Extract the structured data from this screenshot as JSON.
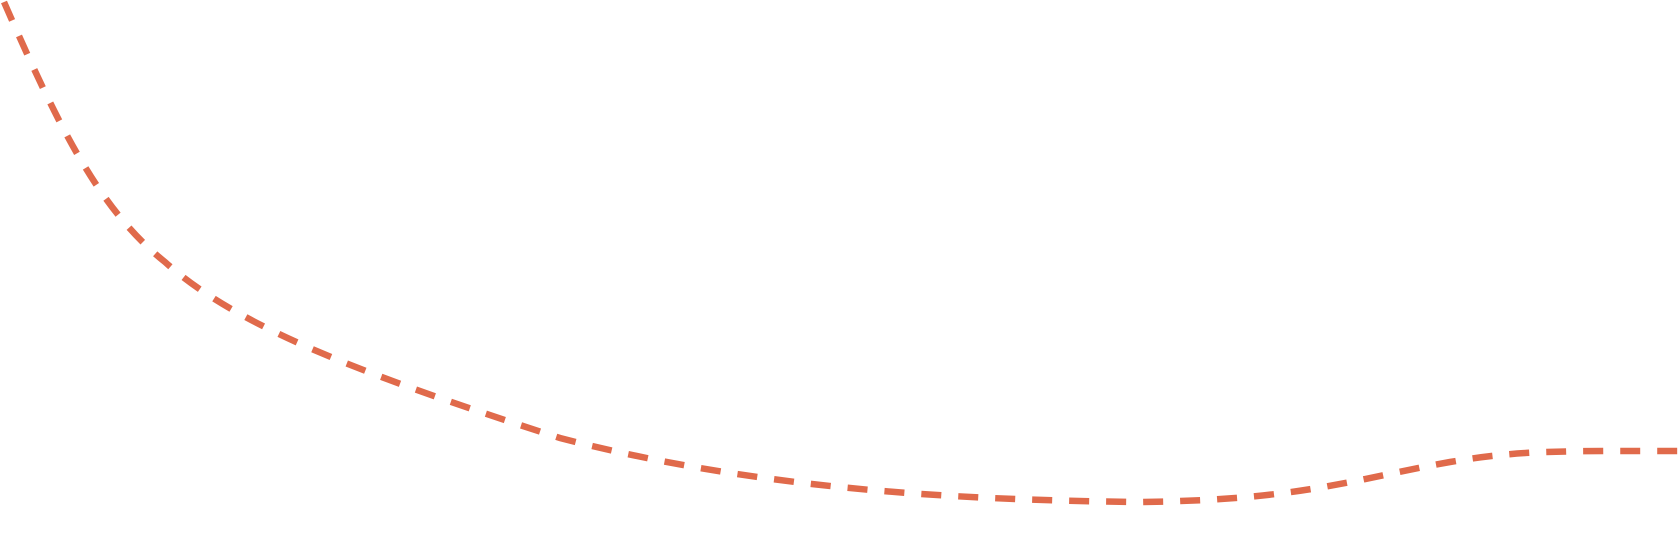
{
  "decoration": {
    "type": "dashed-curve",
    "stroke_color": "#E06A4B",
    "background_color": "#FFFFFF"
  }
}
